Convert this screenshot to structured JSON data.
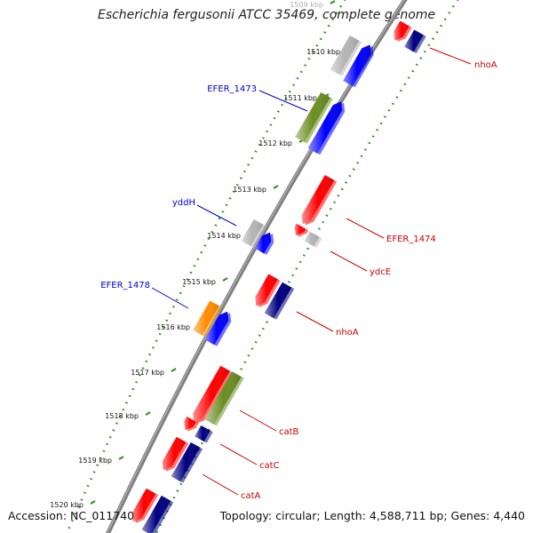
{
  "title": "Escherichia fergusonii ATCC 35469, complete genome",
  "footer": {
    "accession": "Accession: NC_011740",
    "summary": "Topology: circular; Length: 4,588,711 bp; Genes: 4,440"
  },
  "colors": {
    "backbone": "#808080",
    "dots": "#2e8b22",
    "label_forward": "#0000cc",
    "label_reverse": "#cc0000",
    "red": "#ff0000",
    "blue": "#0000ff",
    "navy": "#000080",
    "gray": "#b4b4b4",
    "olive": "#6b8e23",
    "orange": "#ff8c00"
  },
  "ticks": [
    {
      "label": "1509 kbp"
    },
    {
      "label": "1510 kbp"
    },
    {
      "label": "1511 kbp"
    },
    {
      "label": "1512 kbp"
    },
    {
      "label": "1513 kbp"
    },
    {
      "label": "1514 kbp"
    },
    {
      "label": "1515 kbp"
    },
    {
      "label": "1516 kbp"
    },
    {
      "label": "1517 kbp"
    },
    {
      "label": "1518 kbp"
    },
    {
      "label": "1519 kbp"
    },
    {
      "label": "1520 kbp"
    }
  ],
  "gene_labels": [
    {
      "text": "nhoA",
      "strand": "reverse"
    },
    {
      "text": "EFER_1473",
      "strand": "forward"
    },
    {
      "text": "yddH",
      "strand": "forward"
    },
    {
      "text": "EFER_1474",
      "strand": "reverse"
    },
    {
      "text": "ydcE",
      "strand": "reverse"
    },
    {
      "text": "EFER_1478",
      "strand": "forward"
    },
    {
      "text": "nhoA",
      "strand": "reverse"
    },
    {
      "text": "catB",
      "strand": "reverse"
    },
    {
      "text": "catC",
      "strand": "reverse"
    },
    {
      "text": "catA",
      "strand": "reverse"
    }
  ]
}
